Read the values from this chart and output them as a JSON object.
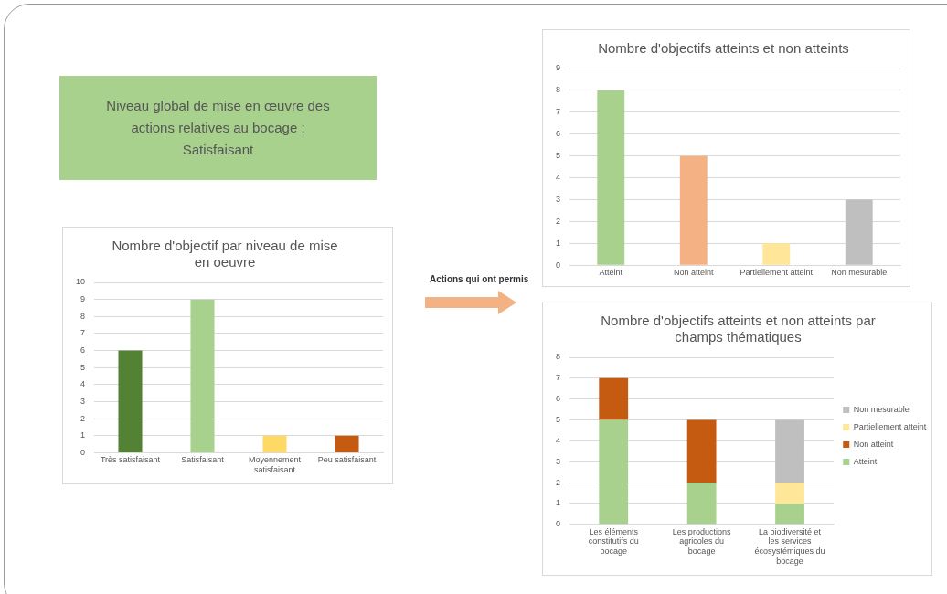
{
  "chart_data": [
    {
      "type": "other",
      "title": "Niveau global de mise en œuvre des actions relatives au bocage :",
      "subtitle": "Satisfaisant",
      "color": "#a9d18e",
      "annotations": [
        "Actions qui ont permis"
      ]
    },
    {
      "type": "bar",
      "title": "Nombre d'objectif par niveau de mise en oeuvre",
      "categories": [
        "Très satisfaisant",
        "Satisfaisant",
        "Moyennement satisfaisant",
        "Peu satisfaisant"
      ],
      "values": [
        6,
        9,
        1,
        1
      ],
      "colors": [
        "#548235",
        "#a9d18e",
        "#ffd966",
        "#c55a11"
      ],
      "ylim": [
        0,
        10
      ],
      "yticks": [
        0,
        1,
        2,
        3,
        4,
        5,
        6,
        7,
        8,
        9,
        10
      ],
      "grid": "y"
    },
    {
      "type": "bar",
      "title": "Nombre d'objectifs atteints et non atteints",
      "categories": [
        "Atteint",
        "Non atteint",
        "Partiellement atteint",
        "Non mesurable"
      ],
      "values": [
        8,
        5,
        1,
        3
      ],
      "colors": [
        "#a9d18e",
        "#f4b183",
        "#ffe699",
        "#bfbfbf"
      ],
      "ylim": [
        0,
        9
      ],
      "yticks": [
        0,
        1,
        2,
        3,
        4,
        5,
        6,
        7,
        8,
        9
      ],
      "grid": "y"
    },
    {
      "type": "bar",
      "title": "Nombre d'objectifs atteints et non atteints par champs thématiques",
      "categories": [
        "Les éléments constitutifs du bocage",
        "Les productions agricoles du bocage",
        "La biodiversité et les services écosystémiques du bocage"
      ],
      "stacked": true,
      "legend": "right",
      "ylim": [
        0,
        8
      ],
      "yticks": [
        0,
        1,
        2,
        3,
        4,
        5,
        6,
        7,
        8
      ],
      "grid": "y",
      "series": [
        {
          "name": "Atteint",
          "color": "#a9d18e",
          "values": [
            5,
            2,
            1
          ]
        },
        {
          "name": "Non atteint",
          "color": "#c55a11",
          "values": [
            2,
            3,
            0
          ]
        },
        {
          "name": "Partiellement atteint",
          "color": "#ffe699",
          "values": [
            0,
            0,
            1
          ]
        },
        {
          "name": "Non mesurable",
          "color": "#bfbfbf",
          "values": [
            0,
            0,
            3
          ]
        }
      ]
    }
  ]
}
